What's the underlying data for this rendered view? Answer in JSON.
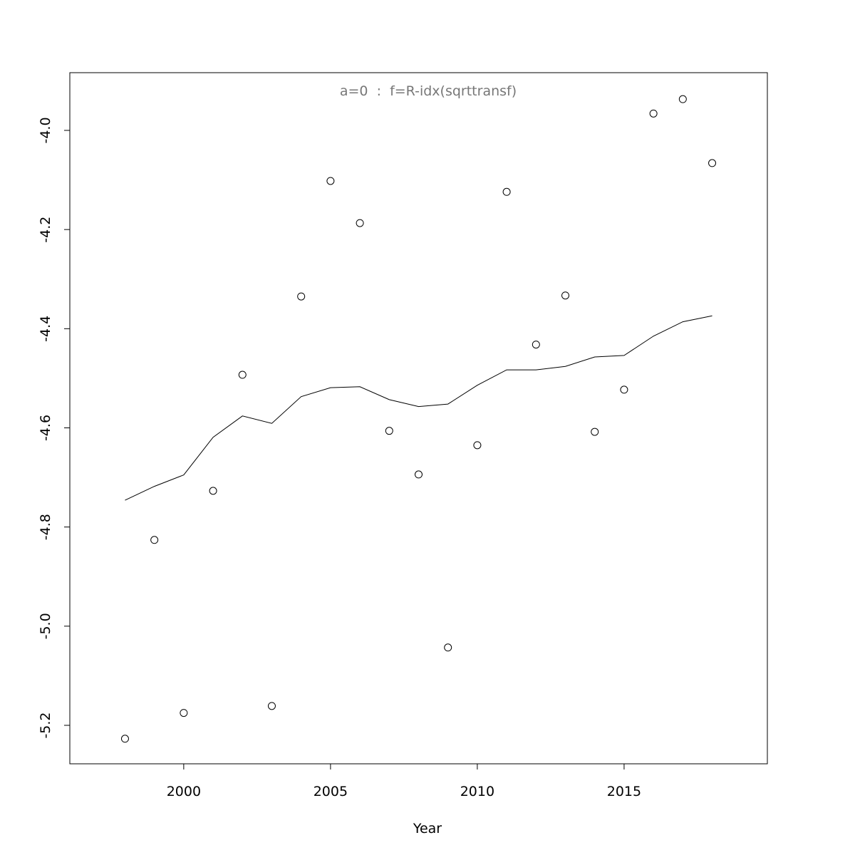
{
  "chart_data": {
    "type": "scatter",
    "title": "a=0  :  f=R-idx(sqrttransf)",
    "x_label": "Year",
    "x": [
      1998,
      1999,
      2000,
      2001,
      2002,
      2003,
      2004,
      2005,
      2006,
      2007,
      2008,
      2009,
      2010,
      2011,
      2012,
      2013,
      2014,
      2015,
      2016,
      2017,
      2018
    ],
    "series": [
      {
        "type": "scatter",
        "color": "#000000",
        "values": [
          -5.227,
          -4.826,
          -5.175,
          -4.727,
          -4.493,
          -5.161,
          -4.335,
          -4.102,
          -4.187,
          -4.606,
          -4.694,
          -5.043,
          -4.635,
          -4.124,
          -4.432,
          -4.333,
          -4.608,
          -4.523,
          -3.966,
          -3.937,
          -4.066
        ]
      },
      {
        "type": "line",
        "color": "#000000",
        "values": [
          -4.746,
          -4.718,
          -4.695,
          -4.619,
          -4.576,
          -4.591,
          -4.537,
          -4.519,
          -4.517,
          -4.543,
          -4.557,
          -4.552,
          -4.514,
          -4.483,
          -4.483,
          -4.476,
          -4.457,
          -4.454,
          -4.415,
          -4.386,
          -4.374
        ]
      }
    ],
    "xlim": [
      1996.12,
      2019.88
    ],
    "ylim": [
      -5.2776,
      -3.8836
    ],
    "xticks": [
      2000,
      2005,
      2010,
      2015
    ],
    "yticks": [
      {
        "value": -5.2,
        "label": "-5.2"
      },
      {
        "value": -5,
        "label": "-5.0"
      },
      -4.8,
      -4.6,
      -4.4,
      -4.2,
      {
        "value": -4,
        "label": "-4.0"
      }
    ],
    "grid": false
  }
}
